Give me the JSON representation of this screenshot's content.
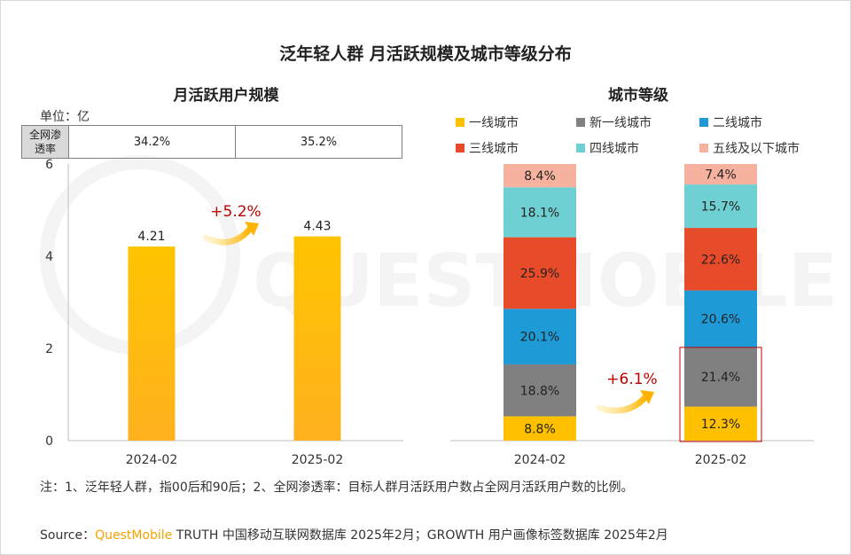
{
  "title": "泛年轻人群 月活跃规模及城市等级分布",
  "left_panel": {
    "subtitle": "月活跃用户规模",
    "unit": "单位：亿",
    "penetration_label_line1": "全网渗",
    "penetration_label_line2": "透率",
    "penetration_values": [
      "34.2%",
      "35.2%"
    ]
  },
  "right_panel": {
    "subtitle": "城市等级"
  },
  "note": "注：1、泛年轻人群，指00后和90后；2、全网渗透率：目标人群月活跃用户数占全网月活跃用户数的比例。",
  "source": {
    "prefix": "Source：",
    "brand": "QuestMobile",
    "rest": " TRUTH 中国移动互联网数据库 2025年2月；GROWTH 用户画像标签数据库 2025年2月"
  },
  "watermark": "QUESTMOBILE",
  "chart_data": [
    {
      "type": "bar",
      "title": "月活跃用户规模",
      "categories": [
        "2024-02",
        "2025-02"
      ],
      "values": [
        4.21,
        4.43
      ],
      "value_labels": [
        "4.21",
        "4.43"
      ],
      "ylim": [
        0,
        6
      ],
      "yticks": [
        "0",
        "2",
        "4",
        "6"
      ],
      "growth_annotation": "+5.2%",
      "bar_color": "#FFC000",
      "grid": false
    },
    {
      "type": "bar",
      "stacked": true,
      "percent": true,
      "title": "城市等级",
      "categories": [
        "2024-02",
        "2025-02"
      ],
      "legend_position": "top",
      "series": [
        {
          "name": "一线城市",
          "color": "#FFC000",
          "values": [
            8.8,
            12.3
          ],
          "labels": [
            "8.8%",
            "12.3%"
          ]
        },
        {
          "name": "新一线城市",
          "color": "#808080",
          "values": [
            18.8,
            21.4
          ],
          "labels": [
            "18.8%",
            "21.4%"
          ]
        },
        {
          "name": "二线城市",
          "color": "#1E9AD6",
          "values": [
            20.1,
            20.6
          ],
          "labels": [
            "20.1%",
            "20.6%"
          ]
        },
        {
          "name": "三线城市",
          "color": "#E84B2A",
          "values": [
            25.9,
            22.6
          ],
          "labels": [
            "25.9%",
            "22.6%"
          ]
        },
        {
          "name": "四线城市",
          "color": "#6FD0D3",
          "values": [
            18.1,
            15.7
          ],
          "labels": [
            "18.1%",
            "15.7%"
          ]
        },
        {
          "name": "五线及以下城市",
          "color": "#F6B29F",
          "values": [
            8.4,
            7.4
          ],
          "labels": [
            "8.4%",
            "7.4%"
          ]
        }
      ],
      "growth_annotation": "+6.1%",
      "highlight": "2025-02 一线城市 + 新一线城市"
    }
  ]
}
